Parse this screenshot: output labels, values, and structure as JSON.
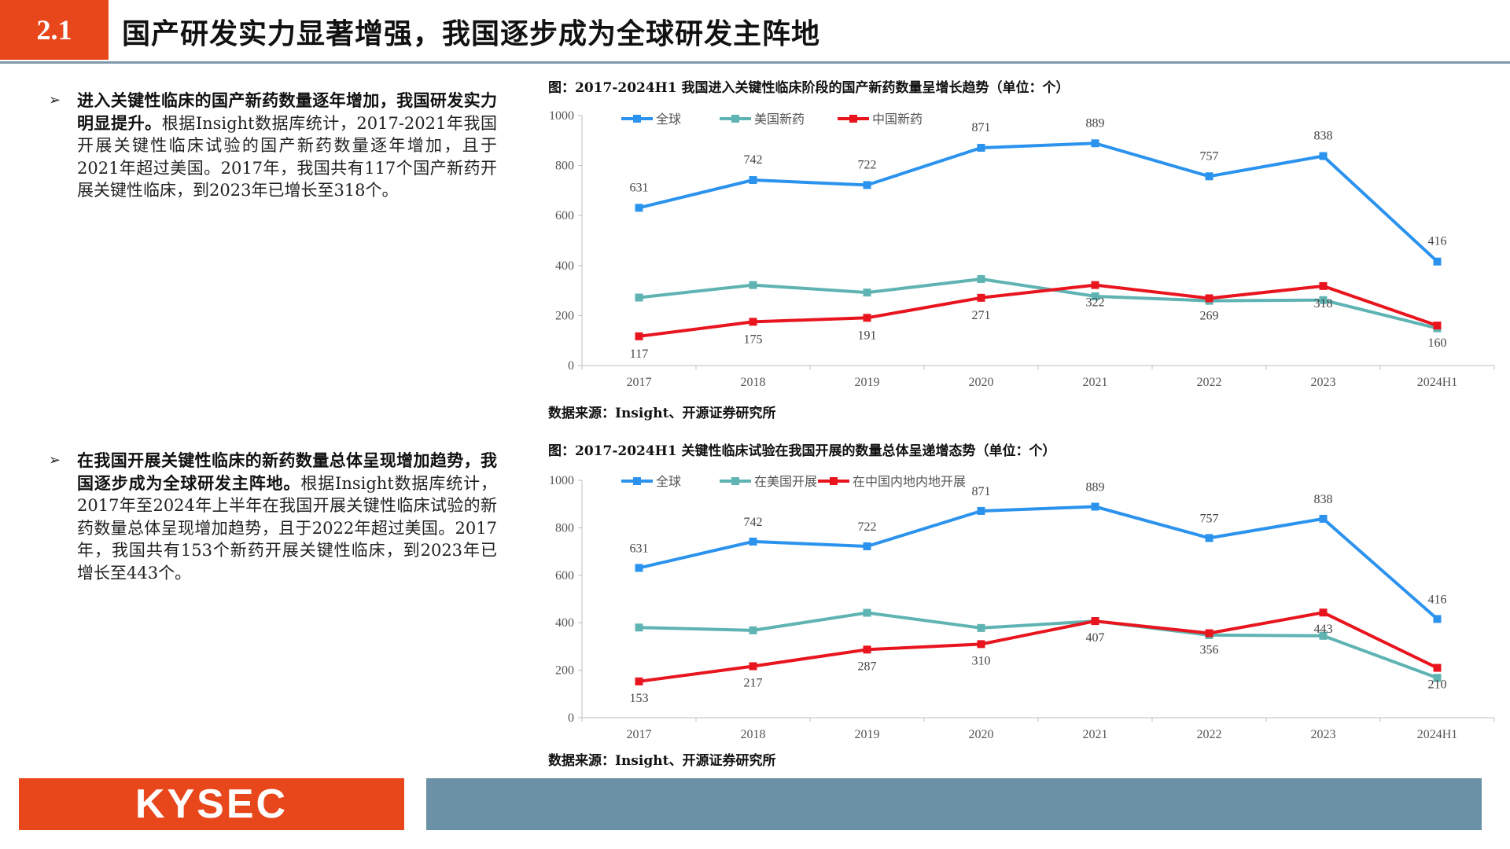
{
  "header": {
    "section_number": "2.1",
    "title": "国产研发实力显著增强，我国逐步成为全球研发主阵地"
  },
  "bullets": [
    {
      "marker": "➢",
      "lead": "进入关键性临床的国产新药数量逐年增加，我国研发实力明显提升。",
      "body": "根据Insight数据库统计，2017-2021年我国开展关键性临床试验的国产新药数量逐年增加，且于2021年超过美国。2017年，我国共有117个国产新药开展关键性临床，到2023年已增长至318个。"
    },
    {
      "marker": "➢",
      "lead": "在我国开展关键性临床的新药数量总体呈现增加趋势，我国逐步成为全球研发主阵地。",
      "body": "根据Insight数据库统计，2017年至2024年上半年在我国开展关键性临床试验的新药数量总体呈现增加趋势，且于2022年超过美国。2017年，我国共有153个新药开展关键性临床，到2023年已增长至443个。"
    }
  ],
  "charts": [
    {
      "caption": "图：2017-2024H1 我国进入关键性临床阶段的国产新药数量呈增长趋势（单位：个）",
      "source": "数据来源：Insight、开源证券研究所"
    },
    {
      "caption": "图：2017-2024H1 关键性临床试验在我国开展的数量总体呈递增态势（单位：个）",
      "source": "数据来源：Insight、开源证券研究所"
    }
  ],
  "chart_data": [
    {
      "type": "line",
      "categories": [
        "2017",
        "2018",
        "2019",
        "2020",
        "2021",
        "2022",
        "2023",
        "2024H1"
      ],
      "ylim": [
        0,
        1000
      ],
      "yticks": [
        0,
        200,
        400,
        600,
        800,
        1000
      ],
      "grid": false,
      "legend_position": "top-left",
      "series": [
        {
          "name": "全球",
          "color": "#2b93ee",
          "values": [
            631,
            742,
            722,
            871,
            889,
            757,
            838,
            416
          ],
          "labels": true,
          "label_pos": "above"
        },
        {
          "name": "美国新药",
          "color": "#5fb3b3",
          "values": [
            272,
            322,
            292,
            346,
            277,
            259,
            262,
            149
          ],
          "labels": false
        },
        {
          "name": "中国新药",
          "color": "#e8141e",
          "values": [
            117,
            175,
            191,
            271,
            322,
            269,
            318,
            160
          ],
          "labels": true,
          "label_pos": "below"
        }
      ]
    },
    {
      "type": "line",
      "categories": [
        "2017",
        "2018",
        "2019",
        "2020",
        "2021",
        "2022",
        "2023",
        "2024H1"
      ],
      "ylim": [
        0,
        1000
      ],
      "yticks": [
        0,
        200,
        400,
        600,
        800,
        1000
      ],
      "grid": false,
      "legend_position": "top-left",
      "series": [
        {
          "name": "全球",
          "color": "#2b93ee",
          "values": [
            631,
            742,
            722,
            871,
            889,
            757,
            838,
            416
          ],
          "labels": true,
          "label_pos": "above"
        },
        {
          "name": "在美国开展",
          "color": "#5fb3b3",
          "values": [
            380,
            368,
            442,
            378,
            407,
            348,
            345,
            168
          ],
          "labels": false
        },
        {
          "name": "在中国内地内地开展",
          "color": "#e8141e",
          "values": [
            153,
            217,
            287,
            310,
            407,
            356,
            443,
            210
          ],
          "labels": true,
          "label_pos": "below"
        }
      ]
    }
  ],
  "footer": {
    "logo_text": "KYSEC"
  }
}
